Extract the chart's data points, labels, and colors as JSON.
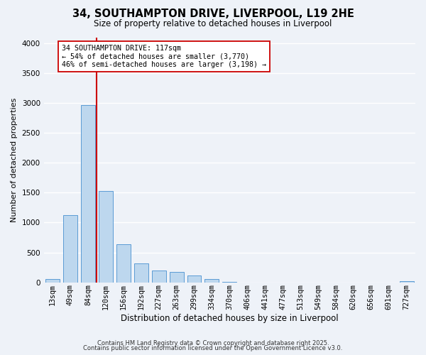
{
  "title": "34, SOUTHAMPTON DRIVE, LIVERPOOL, L19 2HE",
  "subtitle": "Size of property relative to detached houses in Liverpool",
  "xlabel": "Distribution of detached houses by size in Liverpool",
  "ylabel": "Number of detached properties",
  "bar_labels": [
    "13sqm",
    "49sqm",
    "84sqm",
    "120sqm",
    "156sqm",
    "192sqm",
    "227sqm",
    "263sqm",
    "299sqm",
    "334sqm",
    "370sqm",
    "406sqm",
    "441sqm",
    "477sqm",
    "513sqm",
    "549sqm",
    "584sqm",
    "620sqm",
    "656sqm",
    "691sqm",
    "727sqm"
  ],
  "bar_values": [
    55,
    1120,
    2960,
    1530,
    640,
    320,
    200,
    170,
    110,
    55,
    5,
    0,
    0,
    0,
    0,
    0,
    0,
    0,
    0,
    0,
    20
  ],
  "bar_color": "#bdd7ee",
  "bar_edge_color": "#5b9bd5",
  "vline_index": 2.5,
  "vline_color": "#cc0000",
  "annotation_title": "34 SOUTHAMPTON DRIVE: 117sqm",
  "annotation_line2": "← 54% of detached houses are smaller (3,770)",
  "annotation_line3": "46% of semi-detached houses are larger (3,198) →",
  "annotation_box_color": "#ffffff",
  "annotation_box_edge": "#cc0000",
  "ylim": [
    0,
    4100
  ],
  "yticks": [
    0,
    500,
    1000,
    1500,
    2000,
    2500,
    3000,
    3500,
    4000
  ],
  "bg_color": "#eef2f8",
  "grid_color": "#ffffff",
  "footer1": "Contains HM Land Registry data © Crown copyright and database right 2025.",
  "footer2": "Contains public sector information licensed under the Open Government Licence v3.0."
}
